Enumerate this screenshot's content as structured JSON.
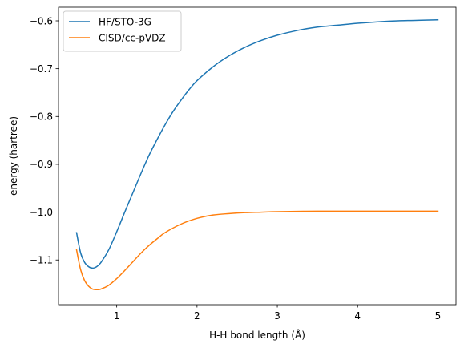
{
  "chart_data": {
    "type": "line",
    "title": "",
    "xlabel": "H-H bond length (Å)",
    "ylabel": "energy (hartree)",
    "xlim": [
      0.275,
      5.225
    ],
    "ylim": [
      -1.1935,
      -0.5715
    ],
    "xticks": [
      1,
      2,
      3,
      4,
      5
    ],
    "xtick_labels": [
      "1",
      "2",
      "3",
      "4",
      "5"
    ],
    "yticks": [
      -1.1,
      -1.0,
      -0.9,
      -0.8,
      -0.7,
      -0.6
    ],
    "ytick_labels": [
      "−1.1",
      "−1.0",
      "−0.9",
      "−0.8",
      "−0.7",
      "−0.6"
    ],
    "grid": false,
    "legend_position": "top-left",
    "series": [
      {
        "name": "HF/STO-3G",
        "color": "#1f77b4",
        "x": [
          0.5,
          0.55,
          0.6,
          0.65,
          0.7,
          0.75,
          0.8,
          0.9,
          1.0,
          1.1,
          1.2,
          1.3,
          1.4,
          1.5,
          1.6,
          1.7,
          1.8,
          1.9,
          2.0,
          2.2,
          2.4,
          2.6,
          2.8,
          3.0,
          3.25,
          3.5,
          3.75,
          4.0,
          4.25,
          4.5,
          4.75,
          5.0
        ],
        "values": [
          -1.043,
          -1.085,
          -1.105,
          -1.114,
          -1.117,
          -1.114,
          -1.106,
          -1.079,
          -1.041,
          -1.0,
          -0.96,
          -0.92,
          -0.882,
          -0.849,
          -0.818,
          -0.79,
          -0.766,
          -0.744,
          -0.725,
          -0.696,
          -0.673,
          -0.655,
          -0.641,
          -0.63,
          -0.62,
          -0.613,
          -0.609,
          -0.605,
          -0.602,
          -0.6,
          -0.599,
          -0.598
        ]
      },
      {
        "name": "CISD/cc-pVDZ",
        "color": "#ff7f0e",
        "x": [
          0.5,
          0.55,
          0.6,
          0.65,
          0.7,
          0.75,
          0.8,
          0.9,
          1.0,
          1.1,
          1.2,
          1.3,
          1.4,
          1.5,
          1.6,
          1.8,
          2.0,
          2.2,
          2.4,
          2.6,
          2.8,
          3.0,
          3.5,
          4.0,
          4.5,
          5.0
        ],
        "values": [
          -1.079,
          -1.12,
          -1.143,
          -1.155,
          -1.161,
          -1.162,
          -1.161,
          -1.153,
          -1.139,
          -1.122,
          -1.104,
          -1.086,
          -1.07,
          -1.056,
          -1.043,
          -1.025,
          -1.013,
          -1.006,
          -1.003,
          -1.001,
          -1.0,
          -0.999,
          -0.998,
          -0.998,
          -0.998,
          -0.998
        ]
      }
    ]
  }
}
